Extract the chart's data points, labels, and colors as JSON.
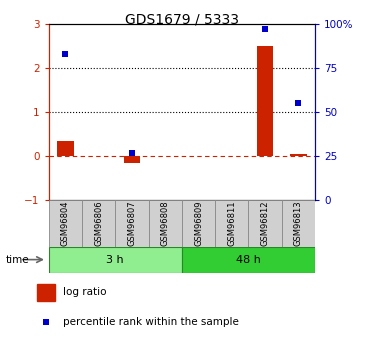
{
  "title": "GDS1679 / 5333",
  "samples": [
    "GSM96804",
    "GSM96806",
    "GSM96807",
    "GSM96808",
    "GSM96809",
    "GSM96811",
    "GSM96812",
    "GSM96813"
  ],
  "log_ratio": [
    0.35,
    0.0,
    -0.15,
    0.0,
    0.0,
    0.0,
    2.5,
    0.05
  ],
  "percentile_rank": [
    83,
    0,
    27,
    0,
    0,
    0,
    97,
    55
  ],
  "percentile_has_marker": [
    true,
    false,
    true,
    false,
    false,
    false,
    true,
    true
  ],
  "log_ratio_has_bar": [
    true,
    false,
    true,
    false,
    false,
    false,
    true,
    true
  ],
  "ylim_left": [
    -1,
    3
  ],
  "ylim_right": [
    0,
    100
  ],
  "yticks_left": [
    -1,
    0,
    1,
    2,
    3
  ],
  "yticks_right": [
    0,
    25,
    50,
    75,
    100
  ],
  "yticklabels_right": [
    "0",
    "25",
    "50",
    "75",
    "100%"
  ],
  "dotted_lines": [
    1,
    2
  ],
  "group_labels": [
    "3 h",
    "48 h"
  ],
  "group_ranges": [
    [
      0,
      4
    ],
    [
      4,
      8
    ]
  ],
  "group_color_light": "#90EE90",
  "group_color_dark": "#32CD32",
  "group_border": "#228B22",
  "bar_color": "#CC2200",
  "marker_color": "#0000CC",
  "bar_width": 0.5,
  "legend_log_ratio": "log ratio",
  "legend_percentile": "percentile rank within the sample",
  "time_label": "time",
  "axis_color_left": "#CC2200",
  "axis_color_right": "#0000CC",
  "sample_box_color": "#D0D0D0",
  "sample_box_edge": "#888888"
}
